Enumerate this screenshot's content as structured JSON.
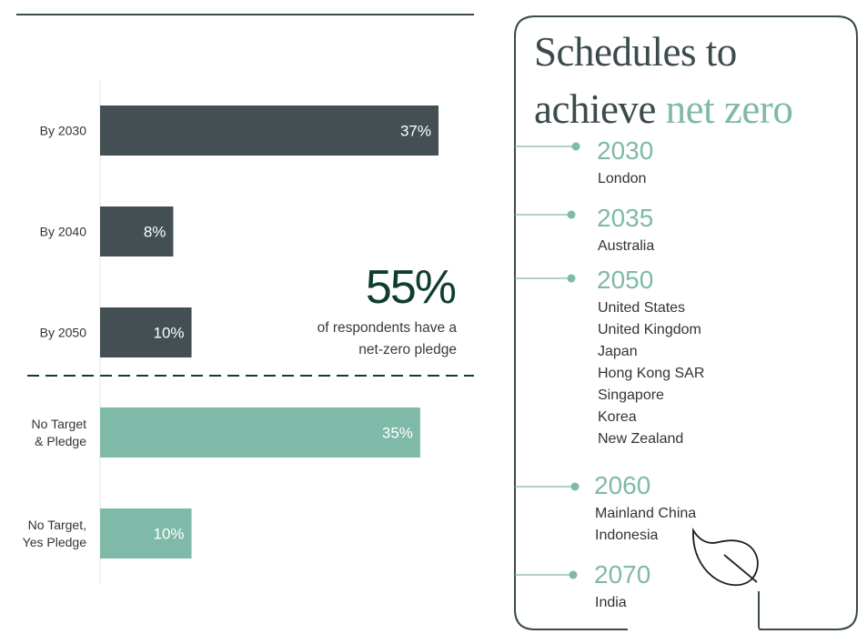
{
  "chart_data": {
    "type": "bar",
    "orientation": "horizontal",
    "categories": [
      "By 2030",
      "By 2040",
      "By 2050",
      "No Target & Pledge",
      "No Target, Yes Pledge"
    ],
    "values": [
      37,
      8,
      10,
      35,
      10
    ],
    "value_labels": [
      "37%",
      "8%",
      "10%",
      "35%",
      "10%"
    ],
    "category_lines": [
      [
        "By 2030"
      ],
      [
        "By 2040"
      ],
      [
        "By 2050"
      ],
      [
        "No Target",
        "& Pledge"
      ],
      [
        "No Target,",
        "Yes Pledge"
      ]
    ],
    "bar_colors": [
      "#434f52",
      "#434f52",
      "#434f52",
      "#7fb9a8",
      "#7fb9a8"
    ],
    "xlim": [
      0,
      40
    ],
    "grid": false,
    "annotation": {
      "value": "55%",
      "text_lines": [
        "of respondents have a",
        "net-zero pledge"
      ]
    }
  },
  "panel": {
    "title_line1": "Schedules to",
    "title_line2_plain": "achieve ",
    "title_line2_accent": "net zero",
    "timeline": [
      {
        "year": "2030",
        "places": [
          "London"
        ]
      },
      {
        "year": "2035",
        "places": [
          "Australia"
        ]
      },
      {
        "year": "2050",
        "places": [
          "United States",
          "United Kingdom",
          "Japan",
          "Hong Kong SAR",
          "Singapore",
          "Korea",
          "New Zealand"
        ]
      },
      {
        "year": "2060",
        "places": [
          "Mainland China",
          "Indonesia"
        ]
      },
      {
        "year": "2070",
        "places": [
          "India"
        ]
      }
    ]
  },
  "colors": {
    "dark_bar": "#434f52",
    "light_bar": "#7fb9a8",
    "accent_text": "#7fb9a8",
    "headline": "#0f3d2e",
    "rule": "#3b4a4b"
  },
  "icons": [
    "leaf-icon"
  ]
}
